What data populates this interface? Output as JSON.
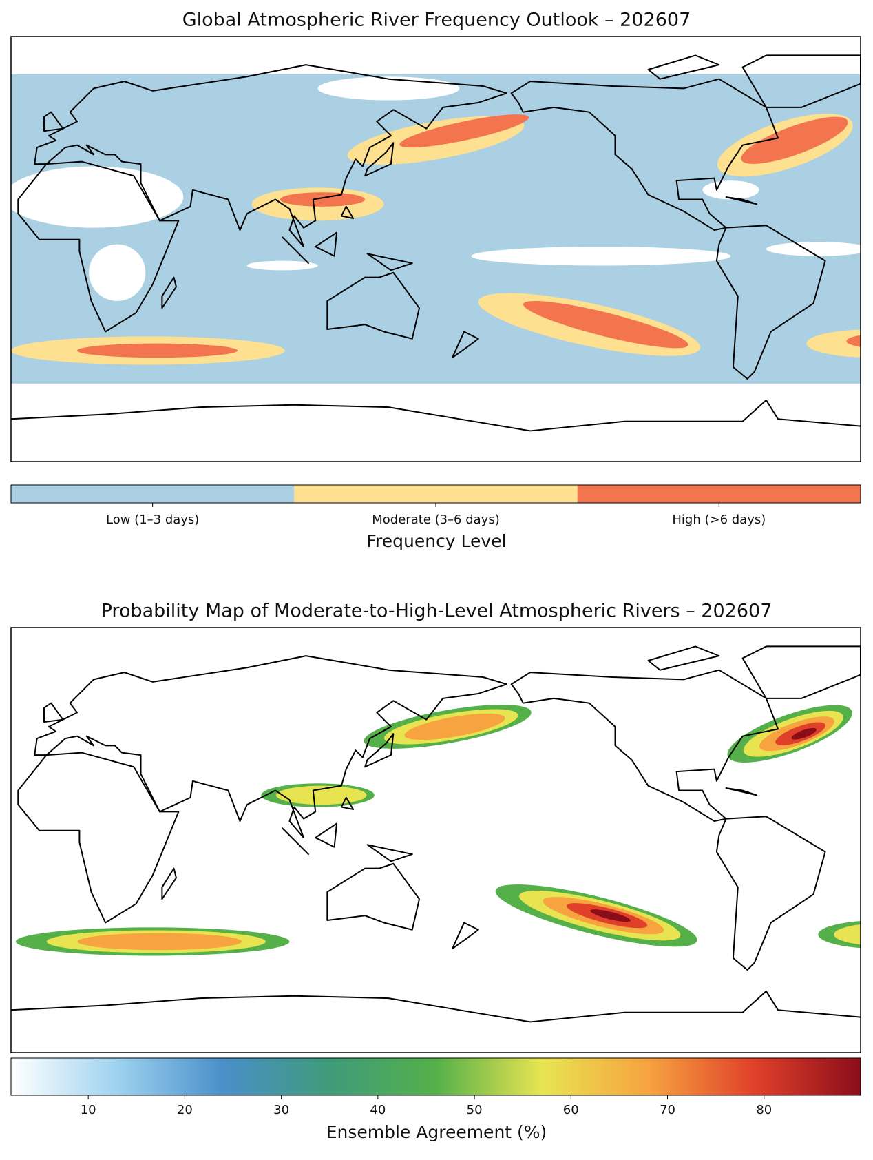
{
  "chart_data": [
    {
      "type": "map",
      "title": "Global Atmospheric River Frequency Outlook – 202607",
      "colorbar": {
        "label": "Frequency Level",
        "categories": [
          "Low (1–3 days)",
          "Moderate (3–6 days)",
          "High (>6 days)"
        ],
        "colors": [
          "#abd0e4",
          "#fde090",
          "#f2754f"
        ]
      }
    },
    {
      "type": "map",
      "title": "Probability Map of Moderate-to-High-Level Atmospheric Rivers – 202607",
      "colorbar": {
        "label": "Ensemble Agreement (%)",
        "clim": [
          2,
          90
        ],
        "ticks": [
          10,
          20,
          30,
          40,
          50,
          60,
          70,
          80
        ],
        "colormap": [
          "#ffffff",
          "#9ed2ef",
          "#4a8fc9",
          "#3f9b7a",
          "#55b04a",
          "#e8e451",
          "#f6a340",
          "#e0402a",
          "#8b0d1a"
        ]
      }
    }
  ]
}
